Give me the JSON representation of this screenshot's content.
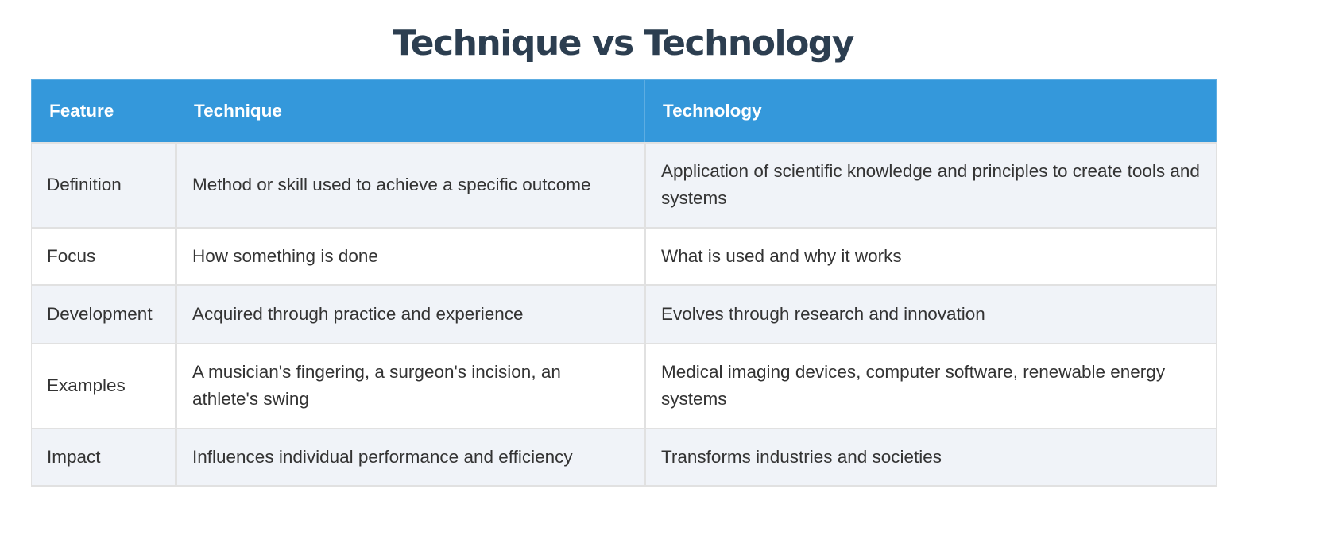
{
  "title": "Technique vs Technology",
  "colors": {
    "header_bg": "#3498db",
    "header_text": "#ffffff",
    "title_text": "#2c3e50",
    "row_odd_bg": "#f0f3f8",
    "row_even_bg": "#ffffff",
    "border": "#e1e1e1"
  },
  "table": {
    "headers": [
      "Feature",
      "Technique",
      "Technology"
    ],
    "rows": [
      {
        "feature": "Definition",
        "technique": "Method or skill used to achieve a specific outcome",
        "technology": "Application of scientific knowledge and principles to create tools and systems"
      },
      {
        "feature": "Focus",
        "technique": "How something is done",
        "technology": "What is used and why it works"
      },
      {
        "feature": "Development",
        "technique": "Acquired through practice and experience",
        "technology": "Evolves through research and innovation"
      },
      {
        "feature": "Examples",
        "technique": "A musician's fingering, a surgeon's incision, an athlete's swing",
        "technology": "Medical imaging devices, computer software, renewable energy systems"
      },
      {
        "feature": "Impact",
        "technique": "Influences individual performance and efficiency",
        "technology": "Transforms industries and societies"
      }
    ]
  }
}
